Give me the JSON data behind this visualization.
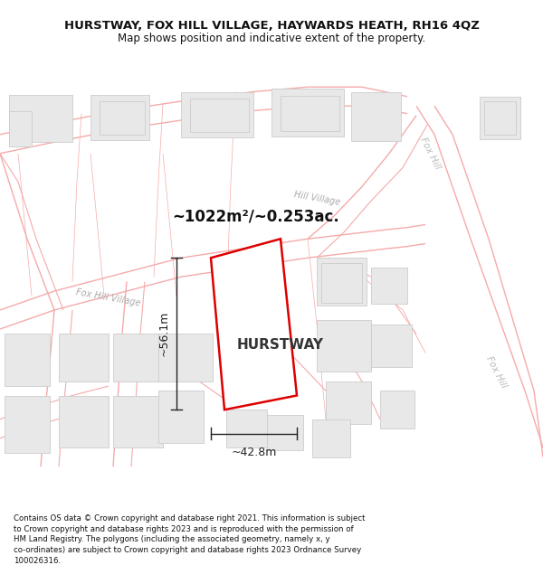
{
  "title": "HURSTWAY, FOX HILL VILLAGE, HAYWARDS HEATH, RH16 4QZ",
  "subtitle": "Map shows position and indicative extent of the property.",
  "property_label": "HURSTWAY",
  "area_label": "~1022m²/~0.253ac.",
  "dim_horizontal": "~42.8m",
  "dim_vertical": "~56.1m",
  "footer": "Contains OS data © Crown copyright and database right 2021. This information is subject to Crown copyright and database rights 2023 and is reproduced with the permission of HM Land Registry. The polygons (including the associated geometry, namely x, y co-ordinates) are subject to Crown copyright and database rights 2023 Ordnance Survey 100026316.",
  "bg_color": "#ffffff",
  "road_color": "#f5aaaa",
  "building_fill": "#e8e8e8",
  "building_edge": "#cccccc",
  "property_edge_color": "#dd0000",
  "property_fill": "#ffffff",
  "dim_color": "#222222",
  "street_label_color": "#aaaaaa",
  "title_fontsize": 9.5,
  "subtitle_fontsize": 8.5,
  "footer_fontsize": 6.2
}
